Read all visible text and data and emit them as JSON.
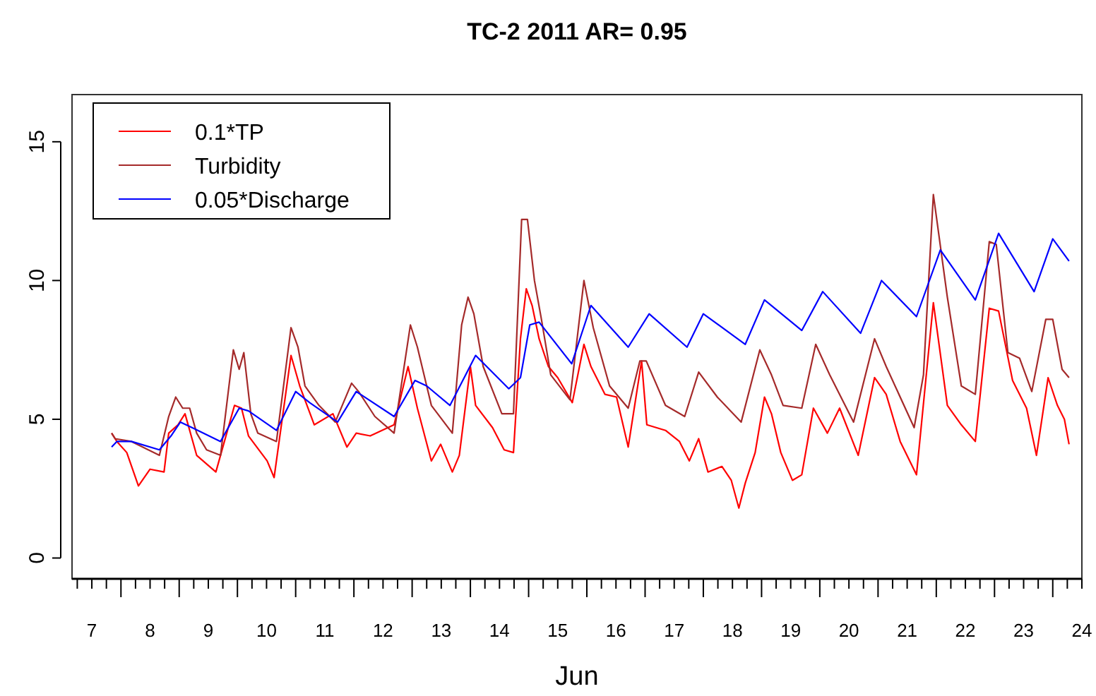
{
  "chart_data": {
    "type": "line",
    "title": "TC-2 2011 AR= 0.95",
    "xlabel": "Jun",
    "legend": "top left",
    "grid": false,
    "line_style": "solid",
    "marker": "none",
    "xlim": [
      7.16,
      24.5
    ],
    "ylim": [
      -0.75,
      16.7
    ],
    "yticks": [
      0,
      5,
      10,
      15
    ],
    "xticks": [
      {
        "value": 7.5,
        "label": "7"
      },
      {
        "value": 8.5,
        "label": "8"
      },
      {
        "value": 9.5,
        "label": "9"
      },
      {
        "value": 10.5,
        "label": "10"
      },
      {
        "value": 11.5,
        "label": "11"
      },
      {
        "value": 12.5,
        "label": "12"
      },
      {
        "value": 13.5,
        "label": "13"
      },
      {
        "value": 14.5,
        "label": "14"
      },
      {
        "value": 15.5,
        "label": "15"
      },
      {
        "value": 16.5,
        "label": "16"
      },
      {
        "value": 17.5,
        "label": "17"
      },
      {
        "value": 18.5,
        "label": "18"
      },
      {
        "value": 19.5,
        "label": "19"
      },
      {
        "value": 20.5,
        "label": "20"
      },
      {
        "value": 21.5,
        "label": "21"
      },
      {
        "value": 22.5,
        "label": "22"
      },
      {
        "value": 23.5,
        "label": "23"
      },
      {
        "value": 24.5,
        "label": "24"
      },
      {
        "value": 8,
        "label": null
      },
      {
        "value": 9,
        "label": null
      },
      {
        "value": 10,
        "label": null
      },
      {
        "value": 11,
        "label": null
      },
      {
        "value": 12,
        "label": null
      },
      {
        "value": 13,
        "label": null
      },
      {
        "value": 14,
        "label": null
      },
      {
        "value": 15,
        "label": null
      },
      {
        "value": 16,
        "label": null
      },
      {
        "value": 17,
        "label": null
      },
      {
        "value": 18,
        "label": null
      },
      {
        "value": 19,
        "label": null
      },
      {
        "value": 20,
        "label": null
      },
      {
        "value": 21,
        "label": null
      },
      {
        "value": 22,
        "label": null
      },
      {
        "value": 23,
        "label": null
      },
      {
        "value": 24,
        "label": null
      },
      {
        "value": 7.25,
        "label": null
      },
      {
        "value": 7.75,
        "label": null
      },
      {
        "value": 8.25,
        "label": null
      },
      {
        "value": 8.75,
        "label": null
      },
      {
        "value": 9.25,
        "label": null
      },
      {
        "value": 9.75,
        "label": null
      },
      {
        "value": 10.25,
        "label": null
      },
      {
        "value": 10.75,
        "label": null
      },
      {
        "value": 11.25,
        "label": null
      },
      {
        "value": 11.75,
        "label": null
      },
      {
        "value": 12.25,
        "label": null
      },
      {
        "value": 12.75,
        "label": null
      },
      {
        "value": 13.25,
        "label": null
      },
      {
        "value": 13.75,
        "label": null
      },
      {
        "value": 14.25,
        "label": null
      },
      {
        "value": 14.75,
        "label": null
      },
      {
        "value": 15.25,
        "label": null
      },
      {
        "value": 15.75,
        "label": null
      },
      {
        "value": 16.25,
        "label": null
      },
      {
        "value": 16.75,
        "label": null
      },
      {
        "value": 17.25,
        "label": null
      },
      {
        "value": 17.75,
        "label": null
      },
      {
        "value": 18.25,
        "label": null
      },
      {
        "value": 18.75,
        "label": null
      },
      {
        "value": 19.25,
        "label": null
      },
      {
        "value": 19.75,
        "label": null
      },
      {
        "value": 20.25,
        "label": null
      },
      {
        "value": 20.75,
        "label": null
      },
      {
        "value": 21.25,
        "label": null
      },
      {
        "value": 21.75,
        "label": null
      },
      {
        "value": 22.25,
        "label": null
      },
      {
        "value": 22.75,
        "label": null
      },
      {
        "value": 23.25,
        "label": null
      },
      {
        "value": 23.75,
        "label": null
      },
      {
        "value": 24.25,
        "label": null
      }
    ],
    "series": [
      {
        "name": "0.1*TP",
        "color": "#ff0000",
        "x": [
          7.84,
          7.93,
          8.1,
          8.3,
          8.5,
          8.74,
          8.82,
          8.98,
          9.1,
          9.3,
          9.63,
          9.95,
          10.07,
          10.19,
          10.51,
          10.63,
          10.92,
          11.07,
          11.32,
          11.64,
          11.88,
          12.04,
          12.28,
          12.69,
          12.93,
          13.09,
          13.33,
          13.49,
          13.69,
          13.81,
          14.0,
          14.09,
          14.38,
          14.58,
          14.74,
          14.86,
          14.96,
          15.06,
          15.18,
          15.34,
          15.5,
          15.75,
          15.95,
          16.07,
          16.31,
          16.51,
          16.71,
          16.94,
          17.03,
          17.35,
          17.59,
          17.76,
          17.92,
          18.08,
          18.32,
          18.48,
          18.61,
          18.72,
          18.89,
          19.05,
          19.17,
          19.33,
          19.53,
          19.69,
          19.89,
          20.13,
          20.34,
          20.66,
          20.94,
          21.14,
          21.38,
          21.66,
          21.95,
          22.19,
          22.43,
          22.67,
          22.91,
          23.07,
          23.31,
          23.55,
          23.72,
          23.92,
          24.08,
          24.2,
          24.28
        ],
        "values": [
          4.5,
          4.2,
          3.8,
          2.6,
          3.2,
          3.1,
          4.5,
          4.8,
          5.2,
          3.7,
          3.1,
          5.5,
          5.4,
          4.4,
          3.5,
          2.9,
          7.3,
          6.2,
          4.8,
          5.2,
          4.0,
          4.5,
          4.4,
          4.8,
          6.9,
          5.4,
          3.5,
          4.1,
          3.1,
          3.7,
          6.9,
          5.5,
          4.7,
          3.9,
          3.8,
          7.9,
          9.7,
          9.1,
          7.9,
          6.9,
          6.5,
          5.6,
          7.7,
          6.9,
          5.9,
          5.8,
          4.0,
          7.1,
          4.8,
          4.6,
          4.2,
          3.5,
          4.3,
          3.1,
          3.3,
          2.8,
          1.8,
          2.7,
          3.8,
          5.8,
          5.2,
          3.8,
          2.8,
          3.0,
          5.4,
          4.5,
          5.4,
          3.7,
          6.5,
          5.9,
          4.2,
          3.0,
          9.2,
          5.5,
          4.8,
          4.2,
          9.0,
          8.9,
          6.4,
          5.4,
          3.7,
          6.5,
          5.5,
          5.0,
          4.1
        ]
      },
      {
        "name": "Turbidity",
        "color": "#a52a2a",
        "x": [
          7.84,
          7.9,
          8.18,
          8.66,
          8.82,
          8.94,
          9.06,
          9.18,
          9.3,
          9.47,
          9.71,
          9.93,
          10.03,
          10.11,
          10.23,
          10.35,
          10.67,
          10.92,
          11.04,
          11.16,
          11.4,
          11.68,
          11.96,
          12.08,
          12.36,
          12.69,
          12.97,
          13.09,
          13.33,
          13.69,
          13.85,
          13.96,
          14.06,
          14.22,
          14.54,
          14.74,
          14.88,
          14.98,
          15.1,
          15.22,
          15.38,
          15.71,
          15.95,
          16.11,
          16.39,
          16.71,
          16.91,
          17.02,
          17.35,
          17.68,
          17.92,
          18.24,
          18.65,
          18.97,
          19.17,
          19.37,
          19.69,
          19.93,
          20.17,
          20.58,
          20.94,
          21.14,
          21.62,
          21.78,
          21.95,
          22.19,
          22.43,
          22.67,
          22.91,
          23.03,
          23.23,
          23.43,
          23.64,
          23.88,
          24.0,
          24.16,
          24.28
        ],
        "values": [
          4.5,
          4.3,
          4.2,
          3.7,
          5.1,
          5.8,
          5.4,
          5.4,
          4.5,
          3.9,
          3.7,
          7.5,
          6.8,
          7.4,
          5.2,
          4.5,
          4.2,
          8.3,
          7.6,
          6.2,
          5.5,
          4.9,
          6.3,
          6.0,
          5.1,
          4.5,
          8.4,
          7.6,
          5.5,
          4.5,
          8.4,
          9.4,
          8.8,
          6.9,
          5.2,
          5.2,
          12.2,
          12.2,
          10.0,
          8.6,
          6.6,
          5.7,
          10.0,
          8.3,
          6.2,
          5.4,
          7.1,
          7.1,
          5.5,
          5.1,
          6.7,
          5.8,
          4.9,
          7.5,
          6.6,
          5.5,
          5.4,
          7.7,
          6.6,
          4.9,
          7.9,
          6.9,
          4.7,
          6.6,
          13.1,
          9.4,
          6.2,
          5.9,
          11.4,
          11.3,
          7.4,
          7.2,
          6.0,
          8.6,
          8.6,
          6.8,
          6.5
        ]
      },
      {
        "name": "0.05*Discharge",
        "color": "#0000ff",
        "x": [
          7.84,
          7.93,
          8.18,
          8.66,
          8.86,
          9.02,
          9.22,
          9.71,
          10.03,
          10.19,
          10.67,
          11.0,
          11.24,
          11.72,
          12.04,
          12.69,
          13.05,
          13.25,
          13.65,
          14.09,
          14.66,
          14.86,
          15.02,
          15.18,
          15.74,
          16.07,
          16.71,
          17.07,
          17.72,
          18.0,
          18.72,
          19.05,
          19.69,
          20.05,
          20.7,
          21.06,
          21.66,
          22.07,
          22.67,
          23.07,
          23.68,
          24.0,
          24.28
        ],
        "values": [
          4.0,
          4.2,
          4.2,
          3.9,
          4.4,
          4.9,
          4.7,
          4.2,
          5.4,
          5.3,
          4.6,
          6.0,
          5.6,
          4.9,
          6.0,
          5.1,
          6.4,
          6.2,
          5.5,
          7.3,
          6.1,
          6.5,
          8.4,
          8.5,
          7.0,
          9.1,
          7.6,
          8.8,
          7.6,
          8.8,
          7.7,
          9.3,
          8.2,
          9.6,
          8.1,
          10.0,
          8.7,
          11.1,
          9.3,
          11.7,
          9.6,
          11.5,
          10.7
        ]
      }
    ]
  }
}
